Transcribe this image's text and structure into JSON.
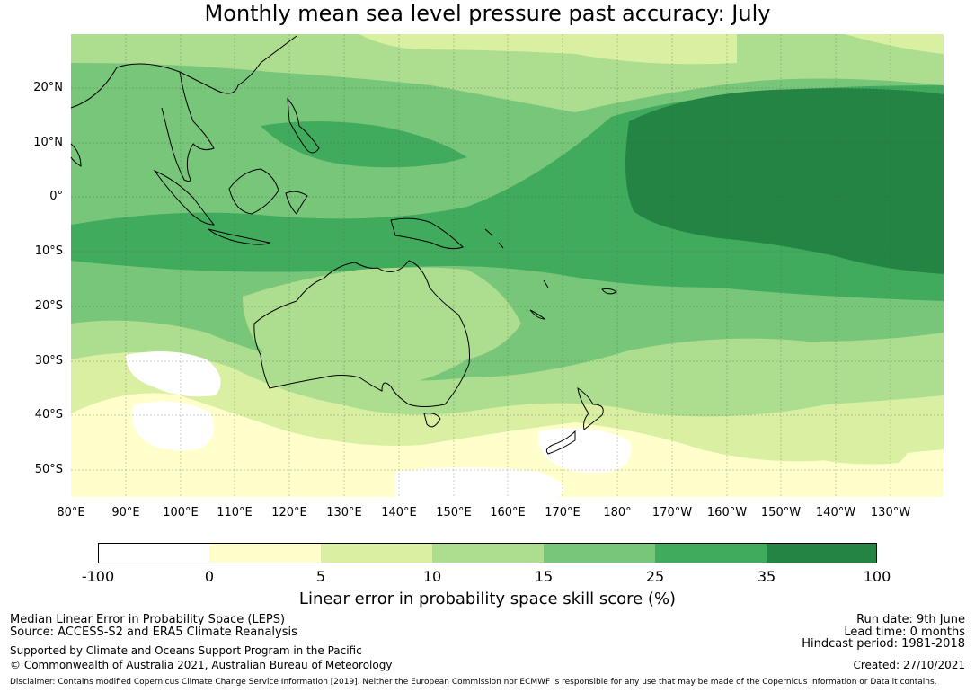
{
  "title": "Monthly mean sea level pressure past accuracy: July",
  "map": {
    "lat_labels": [
      "20°N",
      "10°N",
      "0°",
      "10°S",
      "20°S",
      "30°S",
      "40°S",
      "50°S"
    ],
    "lon_labels": [
      "80°E",
      "90°E",
      "100°E",
      "110°E",
      "120°E",
      "130°E",
      "140°E",
      "150°E",
      "160°E",
      "170°E",
      "180°",
      "170°W",
      "160°W",
      "150°W",
      "140°W",
      "130°W"
    ],
    "colors": {
      "c0": "#ffffff",
      "c1": "#ffffcc",
      "c2": "#d9f0a3",
      "c3": "#addd8e",
      "c4": "#78c679",
      "c5": "#41ab5d",
      "c6": "#238443"
    }
  },
  "colorbar": {
    "ticks": [
      "-100",
      "0",
      "5",
      "10",
      "15",
      "25",
      "35",
      "100"
    ],
    "label": "Linear error in probability space skill score (%)"
  },
  "footer": {
    "line1": "Median Linear Error in Probability Space (LEPS)",
    "line2": "Source: ACCESS-S2 and ERA5 Climate Reanalysis",
    "line3": "Supported by Climate and Oceans Support Program in the Pacific",
    "line4": "© Commonwealth of Australia 2021, Australian Bureau of Meteorology",
    "run_date": "Run date: 9th June",
    "lead_time": "Lead time: 0 months",
    "hindcast": "Hindcast period: 1981-2018",
    "created": "Created: 27/10/2021",
    "disclaimer": "Disclaimer: Contains modified Copernicus Climate Change Service Information [2019]. Neither the European Commission nor ECMWF is responsible for any use that may be made of the Copernicus Information or Data it contains."
  }
}
